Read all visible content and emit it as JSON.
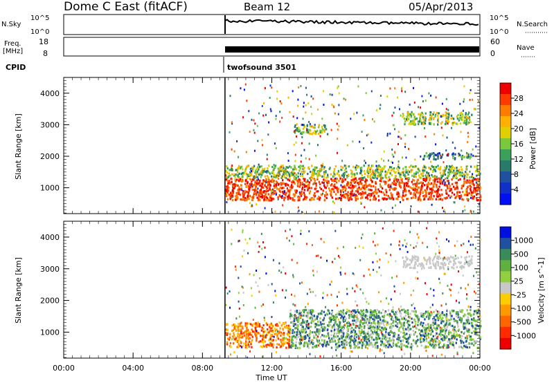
{
  "header": {
    "station": "Dome C East (fitACF)",
    "beam": "Beam 12",
    "date": "05/Apr/2013"
  },
  "top_panels": {
    "nsky_label": "N.Sky",
    "nsky_ticks": [
      "10^5",
      "10^0"
    ],
    "nsearch_label": "N.Search",
    "nsearch_ticks": [
      "10^5",
      "10^0"
    ],
    "freq_label": "Freq.",
    "freq_unit": "[MHz]",
    "freq_ticks": [
      "18",
      "8"
    ],
    "nave_label": "Nave",
    "nave_ticks": [
      "60",
      "0"
    ],
    "cpid_label": "CPID",
    "cpid_text": "twofsound 3501"
  },
  "chart_data": [
    {
      "type": "heatmap",
      "panel": "power",
      "xlabel": "Time UT",
      "ylabel": "Slant Range [km]",
      "x_ticks": [
        "00:00",
        "04:00",
        "08:00",
        "12:00",
        "16:00",
        "20:00",
        "00:00"
      ],
      "x_range_hours": [
        0,
        24
      ],
      "y_ticks": [
        1000,
        2000,
        3000,
        4000
      ],
      "ylim": [
        180,
        4500
      ],
      "data_start_hour": 9.3,
      "colorbar": {
        "label": "Power [dB]",
        "ticks": [
          "28",
          "24",
          "20",
          "16",
          "12",
          "8",
          "4"
        ],
        "colors": [
          "#ee0000",
          "#ff3a00",
          "#ff7a00",
          "#ffb000",
          "#e0d000",
          "#7ac93a",
          "#3aa05a",
          "#2a7a6a",
          "#2050a0",
          "#1030c8",
          "#0010f0"
        ]
      },
      "regions": [
        {
          "t": [
            9.3,
            24
          ],
          "r": [
            600,
            1300
          ],
          "level": "strong"
        },
        {
          "t": [
            9.3,
            24
          ],
          "r": [
            1300,
            1700
          ],
          "level": "medium"
        },
        {
          "t": [
            13.2,
            15.2
          ],
          "r": [
            2700,
            3000
          ],
          "level": "medium"
        },
        {
          "t": [
            19.5,
            23.5
          ],
          "r": [
            3000,
            3400
          ],
          "level": "medium"
        },
        {
          "t": [
            20.5,
            23.5
          ],
          "r": [
            1900,
            2100
          ],
          "level": "weak"
        }
      ]
    },
    {
      "type": "heatmap",
      "panel": "velocity",
      "xlabel": "Time UT",
      "ylabel": "Slant Range [km]",
      "x_ticks": [
        "00:00",
        "04:00",
        "08:00",
        "12:00",
        "16:00",
        "20:00",
        "00:00"
      ],
      "x_range_hours": [
        0,
        24
      ],
      "y_ticks": [
        1000,
        2000,
        3000,
        4000
      ],
      "ylim": [
        180,
        4500
      ],
      "data_start_hour": 9.3,
      "colorbar": {
        "label": "Velocity [m s^-1]",
        "ticks": [
          "1000",
          "500",
          "100",
          "25",
          "-25",
          "-100",
          "-500",
          "-1000"
        ],
        "colors": [
          "#0010e0",
          "#2050a0",
          "#3a8a5a",
          "#60b040",
          "#90d040",
          "#c8c8c8",
          "#ffcc00",
          "#ff9900",
          "#ff6600",
          "#ff2a00",
          "#ee0000"
        ]
      },
      "regions": [
        {
          "t": [
            9.3,
            13.0
          ],
          "r": [
            500,
            1300
          ],
          "level": "negative"
        },
        {
          "t": [
            13.0,
            24
          ],
          "r": [
            500,
            1700
          ],
          "level": "positive"
        },
        {
          "t": [
            19.5,
            23.5
          ],
          "r": [
            3000,
            3400
          ],
          "level": "ground"
        }
      ]
    }
  ]
}
